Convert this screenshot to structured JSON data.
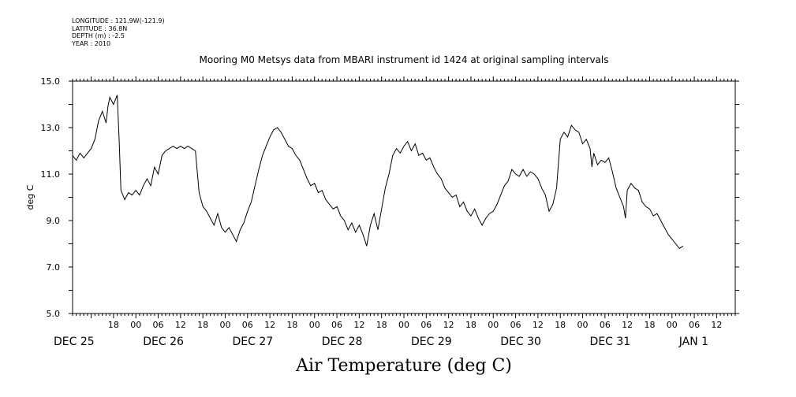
{
  "meta": {
    "longitude": "LONGITUDE : 121.9W(-121.9)",
    "latitude": "LATITUDE : 36.8N",
    "depth": "DEPTH (m) : -2.5",
    "year": "YEAR : 2010"
  },
  "chart_data": {
    "type": "line",
    "title": "Mooring M0 Metsys data from MBARI instrument id 1424 at original sampling intervals",
    "xlabel": "Air Temperature (deg C)",
    "ylabel": "deg C",
    "ylim": [
      5.0,
      15.0
    ],
    "xlim": [
      "2010-12-25T07:00",
      "2011-01-01T17:00"
    ],
    "y_ticks": [
      5.0,
      7.0,
      9.0,
      11.0,
      13.0,
      15.0
    ],
    "y_tick_labels": [
      "5.0",
      "7.0",
      "9.0",
      "11.0",
      "13.0",
      "15.0"
    ],
    "hour_ticks": [
      {
        "t": "2010-12-25T18:00",
        "label": "18"
      },
      {
        "t": "2010-12-26T00:00",
        "label": "00"
      },
      {
        "t": "2010-12-26T06:00",
        "label": "06"
      },
      {
        "t": "2010-12-26T12:00",
        "label": "12"
      },
      {
        "t": "2010-12-26T18:00",
        "label": "18"
      },
      {
        "t": "2010-12-27T00:00",
        "label": "00"
      },
      {
        "t": "2010-12-27T06:00",
        "label": "06"
      },
      {
        "t": "2010-12-27T12:00",
        "label": "12"
      },
      {
        "t": "2010-12-27T18:00",
        "label": "18"
      },
      {
        "t": "2010-12-28T00:00",
        "label": "00"
      },
      {
        "t": "2010-12-28T06:00",
        "label": "06"
      },
      {
        "t": "2010-12-28T12:00",
        "label": "12"
      },
      {
        "t": "2010-12-28T18:00",
        "label": "18"
      },
      {
        "t": "2010-12-29T00:00",
        "label": "00"
      },
      {
        "t": "2010-12-29T06:00",
        "label": "06"
      },
      {
        "t": "2010-12-29T12:00",
        "label": "12"
      },
      {
        "t": "2010-12-29T18:00",
        "label": "18"
      },
      {
        "t": "2010-12-30T00:00",
        "label": "00"
      },
      {
        "t": "2010-12-30T06:00",
        "label": "06"
      },
      {
        "t": "2010-12-30T12:00",
        "label": "12"
      },
      {
        "t": "2010-12-30T18:00",
        "label": "18"
      },
      {
        "t": "2010-12-31T00:00",
        "label": "00"
      },
      {
        "t": "2010-12-31T06:00",
        "label": "06"
      },
      {
        "t": "2010-12-31T12:00",
        "label": "12"
      },
      {
        "t": "2010-12-31T18:00",
        "label": "18"
      },
      {
        "t": "2011-01-01T00:00",
        "label": "00"
      },
      {
        "t": "2011-01-01T06:00",
        "label": "06"
      },
      {
        "t": "2011-01-01T12:00",
        "label": "12"
      }
    ],
    "date_labels": [
      {
        "t": "2010-12-25T07:00",
        "label": "DEC 25"
      },
      {
        "t": "2010-12-26T07:00",
        "label": "DEC 26"
      },
      {
        "t": "2010-12-27T07:00",
        "label": "DEC 27"
      },
      {
        "t": "2010-12-28T07:00",
        "label": "DEC 28"
      },
      {
        "t": "2010-12-29T07:00",
        "label": "DEC 29"
      },
      {
        "t": "2010-12-30T07:00",
        "label": "DEC 30"
      },
      {
        "t": "2010-12-31T07:00",
        "label": "DEC 31"
      },
      {
        "t": "2011-01-01T07:00",
        "label": "JAN  1"
      }
    ],
    "grid": false,
    "series": [
      {
        "color": "#000000",
        "points": [
          [
            "2010-12-25T07:00",
            11.8
          ],
          [
            "2010-12-25T08:00",
            11.6
          ],
          [
            "2010-12-25T09:00",
            11.9
          ],
          [
            "2010-12-25T10:00",
            11.7
          ],
          [
            "2010-12-25T11:00",
            11.9
          ],
          [
            "2010-12-25T12:00",
            12.1
          ],
          [
            "2010-12-25T13:00",
            12.5
          ],
          [
            "2010-12-25T14:00",
            13.3
          ],
          [
            "2010-12-25T15:00",
            13.7
          ],
          [
            "2010-12-25T16:00",
            13.2
          ],
          [
            "2010-12-25T16:30",
            13.9
          ],
          [
            "2010-12-25T17:00",
            14.3
          ],
          [
            "2010-12-25T18:00",
            14.0
          ],
          [
            "2010-12-25T19:00",
            14.4
          ],
          [
            "2010-12-25T19:30",
            12.5
          ],
          [
            "2010-12-25T20:00",
            10.3
          ],
          [
            "2010-12-25T21:00",
            9.9
          ],
          [
            "2010-12-25T22:00",
            10.2
          ],
          [
            "2010-12-25T23:00",
            10.1
          ],
          [
            "2010-12-26T00:00",
            10.3
          ],
          [
            "2010-12-26T01:00",
            10.1
          ],
          [
            "2010-12-26T02:00",
            10.5
          ],
          [
            "2010-12-26T03:00",
            10.8
          ],
          [
            "2010-12-26T04:00",
            10.5
          ],
          [
            "2010-12-26T05:00",
            11.3
          ],
          [
            "2010-12-26T06:00",
            11.0
          ],
          [
            "2010-12-26T07:00",
            11.8
          ],
          [
            "2010-12-26T08:00",
            12.0
          ],
          [
            "2010-12-26T09:00",
            12.1
          ],
          [
            "2010-12-26T10:00",
            12.2
          ],
          [
            "2010-12-26T11:00",
            12.1
          ],
          [
            "2010-12-26T12:00",
            12.2
          ],
          [
            "2010-12-26T13:00",
            12.1
          ],
          [
            "2010-12-26T14:00",
            12.2
          ],
          [
            "2010-12-26T15:00",
            12.1
          ],
          [
            "2010-12-26T16:00",
            12.0
          ],
          [
            "2010-12-26T17:00",
            10.2
          ],
          [
            "2010-12-26T18:00",
            9.6
          ],
          [
            "2010-12-26T19:00",
            9.4
          ],
          [
            "2010-12-26T20:00",
            9.1
          ],
          [
            "2010-12-26T21:00",
            8.8
          ],
          [
            "2010-12-26T22:00",
            9.3
          ],
          [
            "2010-12-26T23:00",
            8.7
          ],
          [
            "2010-12-27T00:00",
            8.5
          ],
          [
            "2010-12-27T01:00",
            8.7
          ],
          [
            "2010-12-27T02:00",
            8.4
          ],
          [
            "2010-12-27T03:00",
            8.1
          ],
          [
            "2010-12-27T04:00",
            8.6
          ],
          [
            "2010-12-27T05:00",
            8.9
          ],
          [
            "2010-12-27T06:00",
            9.4
          ],
          [
            "2010-12-27T07:00",
            9.8
          ],
          [
            "2010-12-27T08:00",
            10.5
          ],
          [
            "2010-12-27T09:00",
            11.2
          ],
          [
            "2010-12-27T10:00",
            11.8
          ],
          [
            "2010-12-27T11:00",
            12.2
          ],
          [
            "2010-12-27T12:00",
            12.6
          ],
          [
            "2010-12-27T13:00",
            12.9
          ],
          [
            "2010-12-27T14:00",
            13.0
          ],
          [
            "2010-12-27T15:00",
            12.8
          ],
          [
            "2010-12-27T16:00",
            12.5
          ],
          [
            "2010-12-27T17:00",
            12.2
          ],
          [
            "2010-12-27T18:00",
            12.1
          ],
          [
            "2010-12-27T19:00",
            11.8
          ],
          [
            "2010-12-27T20:00",
            11.6
          ],
          [
            "2010-12-27T21:00",
            11.2
          ],
          [
            "2010-12-27T22:00",
            10.8
          ],
          [
            "2010-12-27T23:00",
            10.5
          ],
          [
            "2010-12-28T00:00",
            10.6
          ],
          [
            "2010-12-28T01:00",
            10.2
          ],
          [
            "2010-12-28T02:00",
            10.3
          ],
          [
            "2010-12-28T03:00",
            9.9
          ],
          [
            "2010-12-28T04:00",
            9.7
          ],
          [
            "2010-12-28T05:00",
            9.5
          ],
          [
            "2010-12-28T06:00",
            9.6
          ],
          [
            "2010-12-28T07:00",
            9.2
          ],
          [
            "2010-12-28T08:00",
            9.0
          ],
          [
            "2010-12-28T09:00",
            8.6
          ],
          [
            "2010-12-28T10:00",
            8.9
          ],
          [
            "2010-12-28T11:00",
            8.5
          ],
          [
            "2010-12-28T12:00",
            8.8
          ],
          [
            "2010-12-28T13:00",
            8.4
          ],
          [
            "2010-12-28T14:00",
            7.9
          ],
          [
            "2010-12-28T15:00",
            8.8
          ],
          [
            "2010-12-28T16:00",
            9.3
          ],
          [
            "2010-12-28T17:00",
            8.6
          ],
          [
            "2010-12-28T18:00",
            9.5
          ],
          [
            "2010-12-28T19:00",
            10.4
          ],
          [
            "2010-12-28T20:00",
            11.0
          ],
          [
            "2010-12-28T21:00",
            11.8
          ],
          [
            "2010-12-28T22:00",
            12.1
          ],
          [
            "2010-12-28T23:00",
            11.9
          ],
          [
            "2010-12-29T00:00",
            12.2
          ],
          [
            "2010-12-29T01:00",
            12.4
          ],
          [
            "2010-12-29T02:00",
            12.0
          ],
          [
            "2010-12-29T03:00",
            12.3
          ],
          [
            "2010-12-29T04:00",
            11.8
          ],
          [
            "2010-12-29T05:00",
            11.9
          ],
          [
            "2010-12-29T06:00",
            11.6
          ],
          [
            "2010-12-29T07:00",
            11.7
          ],
          [
            "2010-12-29T08:00",
            11.3
          ],
          [
            "2010-12-29T09:00",
            11.0
          ],
          [
            "2010-12-29T10:00",
            10.8
          ],
          [
            "2010-12-29T11:00",
            10.4
          ],
          [
            "2010-12-29T12:00",
            10.2
          ],
          [
            "2010-12-29T13:00",
            10.0
          ],
          [
            "2010-12-29T14:00",
            10.1
          ],
          [
            "2010-12-29T15:00",
            9.6
          ],
          [
            "2010-12-29T16:00",
            9.8
          ],
          [
            "2010-12-29T17:00",
            9.4
          ],
          [
            "2010-12-29T18:00",
            9.2
          ],
          [
            "2010-12-29T19:00",
            9.5
          ],
          [
            "2010-12-29T20:00",
            9.1
          ],
          [
            "2010-12-29T21:00",
            8.8
          ],
          [
            "2010-12-29T22:00",
            9.1
          ],
          [
            "2010-12-29T23:00",
            9.3
          ],
          [
            "2010-12-30T00:00",
            9.4
          ],
          [
            "2010-12-30T01:00",
            9.7
          ],
          [
            "2010-12-30T02:00",
            10.1
          ],
          [
            "2010-12-30T03:00",
            10.5
          ],
          [
            "2010-12-30T04:00",
            10.7
          ],
          [
            "2010-12-30T05:00",
            11.2
          ],
          [
            "2010-12-30T06:00",
            11.0
          ],
          [
            "2010-12-30T07:00",
            10.9
          ],
          [
            "2010-12-30T08:00",
            11.2
          ],
          [
            "2010-12-30T09:00",
            10.9
          ],
          [
            "2010-12-30T10:00",
            11.1
          ],
          [
            "2010-12-30T11:00",
            11.0
          ],
          [
            "2010-12-30T12:00",
            10.8
          ],
          [
            "2010-12-30T13:00",
            10.4
          ],
          [
            "2010-12-30T14:00",
            10.1
          ],
          [
            "2010-12-30T15:00",
            9.4
          ],
          [
            "2010-12-30T16:00",
            9.7
          ],
          [
            "2010-12-30T17:00",
            10.4
          ],
          [
            "2010-12-30T18:00",
            12.5
          ],
          [
            "2010-12-30T19:00",
            12.8
          ],
          [
            "2010-12-30T20:00",
            12.6
          ],
          [
            "2010-12-30T21:00",
            13.1
          ],
          [
            "2010-12-30T22:00",
            12.9
          ],
          [
            "2010-12-30T23:00",
            12.8
          ],
          [
            "2010-12-31T00:00",
            12.3
          ],
          [
            "2010-12-31T01:00",
            12.5
          ],
          [
            "2010-12-31T02:00",
            12.1
          ],
          [
            "2010-12-31T02:30",
            11.3
          ],
          [
            "2010-12-31T03:00",
            11.9
          ],
          [
            "2010-12-31T04:00",
            11.4
          ],
          [
            "2010-12-31T05:00",
            11.6
          ],
          [
            "2010-12-31T06:00",
            11.5
          ],
          [
            "2010-12-31T07:00",
            11.7
          ],
          [
            "2010-12-31T08:00",
            11.1
          ],
          [
            "2010-12-31T09:00",
            10.4
          ],
          [
            "2010-12-31T10:00",
            10.0
          ],
          [
            "2010-12-31T11:00",
            9.6
          ],
          [
            "2010-12-31T11:30",
            9.1
          ],
          [
            "2010-12-31T12:00",
            10.3
          ],
          [
            "2010-12-31T13:00",
            10.6
          ],
          [
            "2010-12-31T14:00",
            10.4
          ],
          [
            "2010-12-31T15:00",
            10.3
          ],
          [
            "2010-12-31T16:00",
            9.8
          ],
          [
            "2010-12-31T17:00",
            9.6
          ],
          [
            "2010-12-31T18:00",
            9.5
          ],
          [
            "2010-12-31T19:00",
            9.2
          ],
          [
            "2010-12-31T20:00",
            9.3
          ],
          [
            "2010-12-31T21:00",
            9.0
          ],
          [
            "2010-12-31T22:00",
            8.7
          ],
          [
            "2010-12-31T23:00",
            8.4
          ],
          [
            "2011-01-01T00:00",
            8.2
          ],
          [
            "2011-01-01T01:00",
            8.0
          ],
          [
            "2011-01-01T02:00",
            7.8
          ],
          [
            "2011-01-01T03:00",
            7.9
          ]
        ]
      }
    ]
  }
}
